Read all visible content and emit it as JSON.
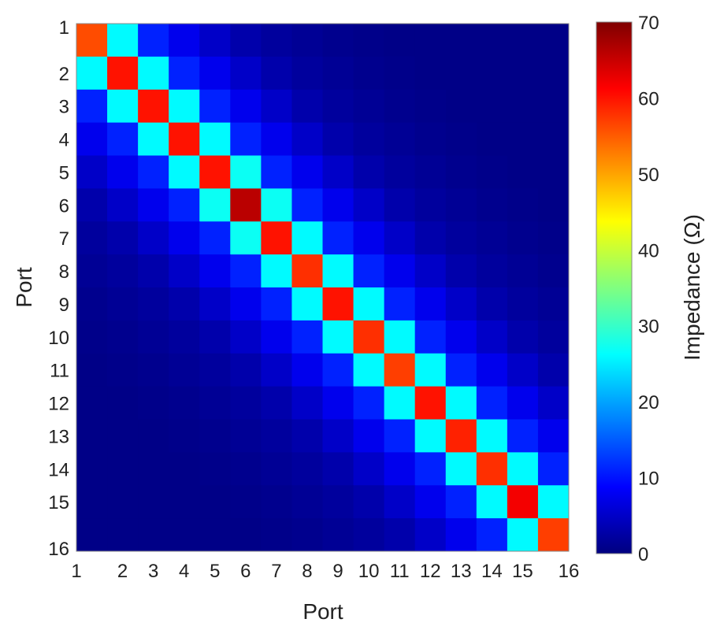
{
  "chart_data": {
    "type": "heatmap",
    "title": "",
    "xlabel": "Port",
    "ylabel": "Port",
    "x_categories": [
      "1",
      "2",
      "3",
      "4",
      "5",
      "6",
      "7",
      "8",
      "9",
      "10",
      "11",
      "12",
      "13",
      "14",
      "15",
      "16"
    ],
    "y_categories": [
      "1",
      "2",
      "3",
      "4",
      "5",
      "6",
      "7",
      "8",
      "9",
      "10",
      "11",
      "12",
      "13",
      "14",
      "15",
      "16"
    ],
    "colormap": "jet",
    "colorbar": {
      "label": "Impedance (Ω)",
      "range": [
        0,
        70
      ],
      "ticks": [
        "0",
        "10",
        "20",
        "30",
        "40",
        "50",
        "60",
        "70"
      ],
      "placement": "right"
    },
    "values": [
      [
        56,
        26,
        11,
        7.5,
        5,
        3,
        2,
        1.5,
        1,
        0.7,
        0.5,
        0.5,
        0.5,
        0.5,
        0.5,
        0.5
      ],
      [
        26,
        60,
        26,
        11,
        7.5,
        5,
        3,
        2,
        1.5,
        1,
        0.7,
        0.5,
        0.5,
        0.5,
        0.5,
        0.5
      ],
      [
        11,
        26,
        60,
        26,
        11,
        7.5,
        5,
        3,
        2,
        1.5,
        1,
        0.7,
        0.5,
        0.5,
        0.5,
        0.5
      ],
      [
        7.5,
        11,
        26,
        60,
        26,
        11,
        7.5,
        5,
        3,
        2,
        1.5,
        1,
        0.7,
        0.5,
        0.5,
        0.5
      ],
      [
        5,
        7.5,
        11,
        26,
        60,
        27,
        11,
        7.5,
        5,
        3,
        2,
        1.5,
        1,
        0.7,
        0.5,
        0.5
      ],
      [
        3,
        5,
        7.5,
        11,
        27,
        66,
        27,
        11,
        7.5,
        5,
        3,
        2,
        1.5,
        1,
        0.7,
        0.5
      ],
      [
        2,
        3,
        5,
        7.5,
        11,
        27,
        60,
        26,
        11,
        7.5,
        5,
        3,
        2,
        1.5,
        1,
        0.7
      ],
      [
        1.5,
        2,
        3,
        5,
        7.5,
        11,
        26,
        58,
        26,
        11,
        7.5,
        5,
        3,
        2,
        1.5,
        1
      ],
      [
        1,
        1.5,
        2,
        3,
        5,
        7.5,
        11,
        26,
        60,
        26,
        11,
        7.5,
        5,
        3,
        2,
        1.5
      ],
      [
        0.7,
        1,
        1.5,
        2,
        3,
        5,
        7.5,
        11,
        26,
        58,
        26,
        11,
        7.5,
        5,
        3,
        2
      ],
      [
        0.5,
        0.7,
        1,
        1.5,
        2,
        3,
        5,
        7.5,
        11,
        26,
        57,
        26,
        11,
        7.5,
        5,
        3
      ],
      [
        0.5,
        0.5,
        0.7,
        1,
        1.5,
        2,
        3,
        5,
        7.5,
        11,
        26,
        60,
        26,
        11,
        7.5,
        5
      ],
      [
        0.5,
        0.5,
        0.5,
        0.7,
        1,
        1.5,
        2,
        3,
        5,
        7.5,
        11,
        26,
        59,
        26,
        11,
        7.5
      ],
      [
        0.5,
        0.5,
        0.5,
        0.5,
        0.7,
        1,
        1.5,
        2,
        3,
        5,
        7.5,
        11,
        26,
        58,
        26,
        11
      ],
      [
        0.5,
        0.5,
        0.5,
        0.5,
        0.5,
        0.7,
        1,
        1.5,
        2,
        3,
        5,
        7.5,
        11,
        26,
        62,
        26
      ],
      [
        0.5,
        0.5,
        0.5,
        0.5,
        0.5,
        0.5,
        0.7,
        1,
        1.5,
        2,
        3,
        5,
        7.5,
        11,
        26,
        57
      ]
    ]
  }
}
